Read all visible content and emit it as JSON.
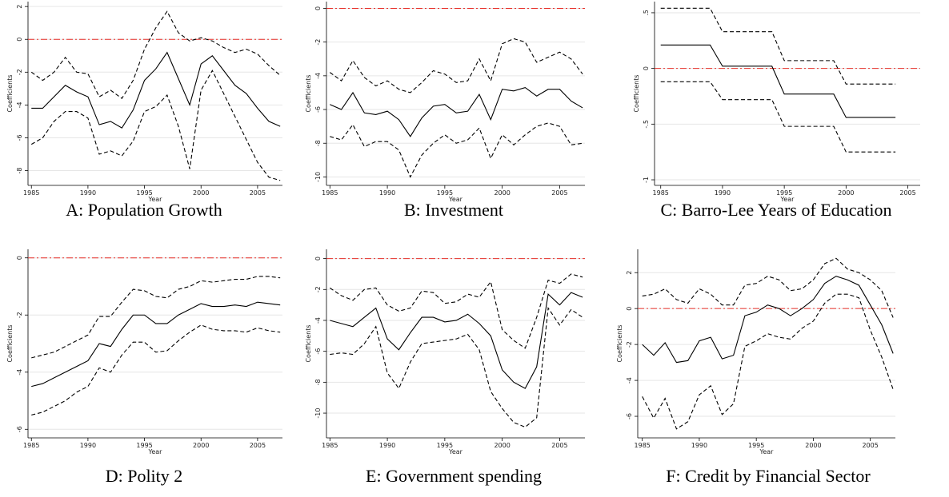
{
  "chart_data": [
    {
      "type": "line",
      "caption": "A: Population Growth",
      "ylabel": "Coefficients",
      "xlabel": "Year",
      "x": [
        1985,
        1986,
        1987,
        1988,
        1989,
        1990,
        1991,
        1992,
        1993,
        1994,
        1995,
        1996,
        1997,
        1998,
        1999,
        2000,
        2001,
        2002,
        2003,
        2004,
        2005,
        2006,
        2007
      ],
      "series": [
        {
          "color": "#000000",
          "dash": false,
          "values": [
            -4.2,
            -4.2,
            -3.5,
            -2.8,
            -3.2,
            -3.5,
            -5.2,
            -5.0,
            -5.4,
            -4.3,
            -2.5,
            -1.8,
            -0.8,
            -2.4,
            -4.0,
            -1.5,
            -1.0,
            -1.9,
            -2.8,
            -3.3,
            -4.2,
            -5.0,
            -5.3
          ]
        },
        {
          "color": "#000000",
          "dash": true,
          "values": [
            -2.0,
            -2.5,
            -2.0,
            -1.1,
            -2.0,
            -2.1,
            -3.5,
            -3.1,
            -3.6,
            -2.5,
            -0.6,
            0.7,
            1.7,
            0.4,
            -0.1,
            0.1,
            -0.1,
            -0.5,
            -0.8,
            -0.6,
            -0.9,
            -1.6,
            -2.2
          ]
        },
        {
          "color": "#000000",
          "dash": true,
          "values": [
            -6.4,
            -6.0,
            -5.0,
            -4.4,
            -4.4,
            -4.8,
            -7.0,
            -6.8,
            -7.1,
            -6.2,
            -4.4,
            -4.1,
            -3.4,
            -5.3,
            -7.9,
            -3.1,
            -1.9,
            -3.3,
            -4.7,
            -6.1,
            -7.5,
            -8.4,
            -8.6
          ]
        }
      ],
      "hline": {
        "value": 0,
        "color": "#e8302a"
      },
      "xlim": [
        1984.7,
        2007.2
      ],
      "xticks": [
        1985,
        1990,
        1995,
        2000,
        2005
      ],
      "ylim": [
        -8.9,
        2.3
      ],
      "yticks": [
        -8,
        -6,
        -4,
        -2,
        0,
        2
      ],
      "grid": true
    },
    {
      "type": "line",
      "caption": "B: Investment",
      "ylabel": "Coefficients",
      "xlabel": "Year",
      "x": [
        1985,
        1986,
        1987,
        1988,
        1989,
        1990,
        1991,
        1992,
        1993,
        1994,
        1995,
        1996,
        1997,
        1998,
        1999,
        2000,
        2001,
        2002,
        2003,
        2004,
        2005,
        2006,
        2007
      ],
      "series": [
        {
          "color": "#000000",
          "dash": false,
          "values": [
            -5.7,
            -6.0,
            -5.0,
            -6.2,
            -6.3,
            -6.1,
            -6.6,
            -7.6,
            -6.5,
            -5.8,
            -5.7,
            -6.2,
            -6.1,
            -5.1,
            -6.6,
            -4.8,
            -4.9,
            -4.7,
            -5.2,
            -4.8,
            -4.8,
            -5.5,
            -5.9
          ]
        },
        {
          "color": "#000000",
          "dash": true,
          "values": [
            -3.8,
            -4.3,
            -3.1,
            -4.1,
            -4.6,
            -4.3,
            -4.8,
            -5.0,
            -4.4,
            -3.7,
            -3.9,
            -4.4,
            -4.3,
            -3.0,
            -4.3,
            -2.1,
            -1.8,
            -2.0,
            -3.2,
            -2.9,
            -2.6,
            -3.0,
            -3.9
          ]
        },
        {
          "color": "#000000",
          "dash": true,
          "values": [
            -7.6,
            -7.8,
            -6.9,
            -8.2,
            -7.9,
            -7.9,
            -8.4,
            -10.0,
            -8.7,
            -8.0,
            -7.5,
            -8.0,
            -7.8,
            -7.1,
            -8.9,
            -7.5,
            -8.1,
            -7.5,
            -7.0,
            -6.8,
            -7.0,
            -8.1,
            -8.0
          ]
        }
      ],
      "hline": {
        "value": 0,
        "color": "#e8302a"
      },
      "xlim": [
        1984.7,
        2007.2
      ],
      "xticks": [
        1985,
        1990,
        1995,
        2000,
        2005
      ],
      "ylim": [
        -10.5,
        0.4
      ],
      "yticks": [
        -10,
        -8,
        -6,
        -4,
        -2,
        0
      ],
      "grid": true
    },
    {
      "type": "line",
      "caption": "C: Barro-Lee Years of Education",
      "ylabel": "Coefficients",
      "xlabel": "Year",
      "x": [
        1985,
        1986,
        1987,
        1988,
        1989,
        1990,
        1991,
        1992,
        1993,
        1994,
        1995,
        1996,
        1997,
        1998,
        1999,
        2000,
        2001,
        2002,
        2003,
        2004
      ],
      "series": [
        {
          "color": "#000000",
          "dash": false,
          "values": [
            0.21,
            0.21,
            0.21,
            0.21,
            0.21,
            0.02,
            0.02,
            0.02,
            0.02,
            0.02,
            -0.23,
            -0.23,
            -0.23,
            -0.23,
            -0.23,
            -0.44,
            -0.44,
            -0.44,
            -0.44,
            -0.44
          ]
        },
        {
          "color": "#000000",
          "dash": true,
          "values": [
            0.54,
            0.54,
            0.54,
            0.54,
            0.54,
            0.33,
            0.33,
            0.33,
            0.33,
            0.33,
            0.07,
            0.07,
            0.07,
            0.07,
            0.07,
            -0.14,
            -0.14,
            -0.14,
            -0.14,
            -0.14
          ]
        },
        {
          "color": "#000000",
          "dash": true,
          "values": [
            -0.12,
            -0.12,
            -0.12,
            -0.12,
            -0.12,
            -0.28,
            -0.28,
            -0.28,
            -0.28,
            -0.28,
            -0.52,
            -0.52,
            -0.52,
            -0.52,
            -0.52,
            -0.75,
            -0.75,
            -0.75,
            -0.75,
            -0.75
          ]
        }
      ],
      "hline": {
        "value": 0,
        "color": "#e8302a"
      },
      "xlim": [
        1984.5,
        2006
      ],
      "xticks": [
        1985,
        1990,
        1995,
        2000,
        2005
      ],
      "ylim": [
        -1.05,
        0.6
      ],
      "yticks": [
        -1,
        {
          "value": -0.5,
          "label": "-.5"
        },
        0,
        {
          "value": 0.5,
          "label": ".5"
        }
      ],
      "grid": true
    },
    {
      "type": "line",
      "caption": "D: Polity 2",
      "ylabel": "Coefficients",
      "xlabel": "Year",
      "x": [
        1985,
        1986,
        1987,
        1988,
        1989,
        1990,
        1991,
        1992,
        1993,
        1994,
        1995,
        1996,
        1997,
        1998,
        1999,
        2000,
        2001,
        2002,
        2003,
        2004,
        2005,
        2006,
        2007
      ],
      "series": [
        {
          "color": "#000000",
          "dash": false,
          "values": [
            -4.5,
            -4.4,
            -4.2,
            -4.0,
            -3.8,
            -3.6,
            -3.0,
            -3.1,
            -2.5,
            -2.0,
            -2.0,
            -2.3,
            -2.3,
            -2.0,
            -1.8,
            -1.6,
            -1.7,
            -1.7,
            -1.65,
            -1.7,
            -1.55,
            -1.6,
            -1.65
          ]
        },
        {
          "color": "#000000",
          "dash": true,
          "values": [
            -3.5,
            -3.4,
            -3.3,
            -3.1,
            -2.9,
            -2.7,
            -2.05,
            -2.05,
            -1.55,
            -1.1,
            -1.15,
            -1.35,
            -1.4,
            -1.1,
            -1.0,
            -0.8,
            -0.85,
            -0.8,
            -0.75,
            -0.75,
            -0.65,
            -0.65,
            -0.7
          ]
        },
        {
          "color": "#000000",
          "dash": true,
          "values": [
            -5.5,
            -5.4,
            -5.2,
            -5.0,
            -4.7,
            -4.5,
            -3.85,
            -4.0,
            -3.4,
            -2.95,
            -2.95,
            -3.3,
            -3.25,
            -2.9,
            -2.6,
            -2.35,
            -2.5,
            -2.55,
            -2.55,
            -2.6,
            -2.45,
            -2.55,
            -2.6
          ]
        }
      ],
      "hline": {
        "value": 0,
        "color": "#e8302a"
      },
      "xlim": [
        1984.7,
        2007.2
      ],
      "xticks": [
        1985,
        1990,
        1995,
        2000,
        2005
      ],
      "ylim": [
        -6.3,
        0.3
      ],
      "yticks": [
        -6,
        -4,
        -2,
        0
      ],
      "grid": true
    },
    {
      "type": "line",
      "caption": "E: Government spending",
      "ylabel": "Coefficients",
      "xlabel": "Year",
      "x": [
        1985,
        1986,
        1987,
        1988,
        1989,
        1990,
        1991,
        1992,
        1993,
        1994,
        1995,
        1996,
        1997,
        1998,
        1999,
        2000,
        2001,
        2002,
        2003,
        2004,
        2005,
        2006,
        2007
      ],
      "series": [
        {
          "color": "#000000",
          "dash": false,
          "values": [
            -4.0,
            -4.2,
            -4.4,
            -3.8,
            -3.2,
            -5.2,
            -5.9,
            -4.8,
            -3.8,
            -3.8,
            -4.1,
            -4.0,
            -3.6,
            -4.2,
            -5.0,
            -7.2,
            -8.0,
            -8.4,
            -7.0,
            -2.3,
            -3.0,
            -2.2,
            -2.5
          ]
        },
        {
          "color": "#000000",
          "dash": true,
          "values": [
            -1.9,
            -2.4,
            -2.7,
            -2.0,
            -1.9,
            -3.0,
            -3.4,
            -3.2,
            -2.1,
            -2.2,
            -2.9,
            -2.8,
            -2.3,
            -2.5,
            -1.5,
            -4.6,
            -5.3,
            -5.8,
            -3.8,
            -1.4,
            -1.6,
            -1.0,
            -1.2
          ]
        },
        {
          "color": "#000000",
          "dash": true,
          "values": [
            -6.2,
            -6.1,
            -6.2,
            -5.5,
            -4.4,
            -7.4,
            -8.4,
            -6.7,
            -5.5,
            -5.4,
            -5.3,
            -5.2,
            -4.9,
            -5.9,
            -8.6,
            -9.7,
            -10.6,
            -10.9,
            -10.3,
            -3.2,
            -4.3,
            -3.3,
            -3.8
          ]
        }
      ],
      "hline": {
        "value": 0,
        "color": "#e8302a"
      },
      "xlim": [
        1984.7,
        2007.2
      ],
      "xticks": [
        1985,
        1990,
        1995,
        2000,
        2005
      ],
      "ylim": [
        -11.6,
        0.6
      ],
      "yticks": [
        -10,
        -8,
        -6,
        -4,
        -2,
        0
      ],
      "grid": true
    },
    {
      "type": "line",
      "caption": "F: Credit by Financial Sector",
      "ylabel": "Coefficients",
      "xlabel": "Year",
      "x": [
        1985,
        1986,
        1987,
        1988,
        1989,
        1990,
        1991,
        1992,
        1993,
        1994,
        1995,
        1996,
        1997,
        1998,
        1999,
        2000,
        2001,
        2002,
        2003,
        2004,
        2005,
        2006,
        2007
      ],
      "series": [
        {
          "color": "#000000",
          "dash": false,
          "values": [
            -2.0,
            -2.6,
            -1.9,
            -3.0,
            -2.9,
            -1.8,
            -1.6,
            -2.8,
            -2.6,
            -0.4,
            -0.2,
            0.2,
            0.0,
            -0.4,
            0.0,
            0.5,
            1.4,
            1.8,
            1.6,
            1.3,
            0.2,
            -0.9,
            -2.5
          ]
        },
        {
          "color": "#000000",
          "dash": true,
          "values": [
            0.7,
            0.8,
            1.1,
            0.5,
            0.3,
            1.1,
            0.8,
            0.2,
            0.2,
            1.3,
            1.4,
            1.8,
            1.6,
            1.0,
            1.1,
            1.6,
            2.5,
            2.8,
            2.2,
            2.0,
            1.6,
            1.0,
            -0.5
          ]
        },
        {
          "color": "#000000",
          "dash": true,
          "values": [
            -4.9,
            -6.1,
            -5.0,
            -6.7,
            -6.3,
            -4.8,
            -4.3,
            -5.9,
            -5.3,
            -2.1,
            -1.8,
            -1.4,
            -1.6,
            -1.7,
            -1.1,
            -0.7,
            0.3,
            0.8,
            0.8,
            0.6,
            -1.2,
            -2.7,
            -4.5
          ]
        }
      ],
      "hline": {
        "value": 0,
        "color": "#e8302a"
      },
      "xlim": [
        1984.6,
        2007.2
      ],
      "xticks": [
        1985,
        1990,
        1995,
        2000,
        2005
      ],
      "ylim": [
        -7.2,
        3.3
      ],
      "yticks": [
        -6,
        -4,
        -2,
        0,
        2
      ],
      "grid": true
    }
  ]
}
